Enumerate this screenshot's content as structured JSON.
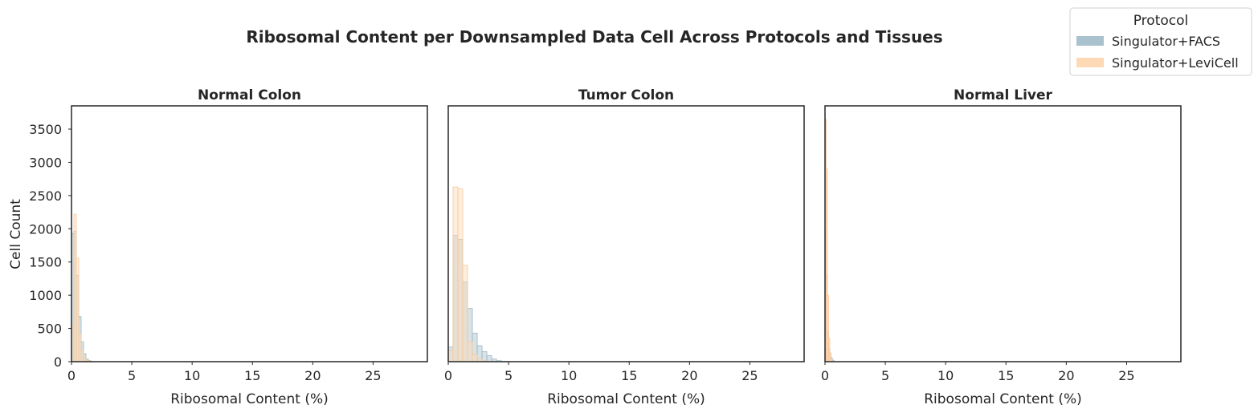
{
  "chart_data": {
    "type": "histogram",
    "title": "Ribosomal Content per Downsampled Data Cell Across Protocols and Tissues",
    "xlabel": "Ribosomal Content (%)",
    "ylabel": "Cell Count",
    "xlim": [
      0,
      29.5
    ],
    "ylim": [
      0,
      3850
    ],
    "xticks": [
      0,
      5,
      10,
      15,
      20,
      25
    ],
    "yticks": [
      0,
      500,
      1000,
      1500,
      2000,
      2500,
      3000,
      3500
    ],
    "grid": false,
    "legend": {
      "title": "Protocol",
      "placement": "top-right",
      "entries": [
        {
          "name": "Singulator+FACS",
          "color": "#A9C2CD"
        },
        {
          "name": "Singulator+LeviCell",
          "color": "#FDD9B5"
        }
      ]
    },
    "series_colors": {
      "Singulator+FACS": {
        "fill": "#A9C2CD",
        "line": "#9DB6C2"
      },
      "Singulator+LeviCell": {
        "fill": "#FDD9B5",
        "line": "#F9C89A"
      }
    },
    "panels": [
      {
        "title": "Normal Colon",
        "bin_width": 0.2,
        "series": [
          {
            "name": "Singulator+FACS",
            "values": [
              1930,
              1960,
              1300,
              680,
              300,
              120,
              40,
              15,
              5
            ]
          },
          {
            "name": "Singulator+LeviCell",
            "values": [
              550,
              2220,
              1560,
              420,
              170,
              60,
              20,
              6
            ]
          }
        ]
      },
      {
        "title": "Tumor Colon",
        "bin_width": 0.4,
        "series": [
          {
            "name": "Singulator+FACS",
            "values": [
              220,
              1900,
              1840,
              1200,
              800,
              430,
              240,
              150,
              90,
              40,
              15,
              5
            ]
          },
          {
            "name": "Singulator+LeviCell",
            "values": [
              170,
              2630,
              2600,
              1450,
              300,
              110,
              40,
              10
            ]
          }
        ]
      },
      {
        "title": "Normal Liver",
        "bin_width": 0.1,
        "series": [
          {
            "name": "Singulator+FACS",
            "values": [
              1980,
              1300,
              450,
              200,
              130,
              60,
              25,
              10
            ]
          },
          {
            "name": "Singulator+LeviCell",
            "values": [
              3650,
              2900,
              1000,
              350,
              130,
              40,
              10
            ]
          }
        ]
      }
    ]
  }
}
